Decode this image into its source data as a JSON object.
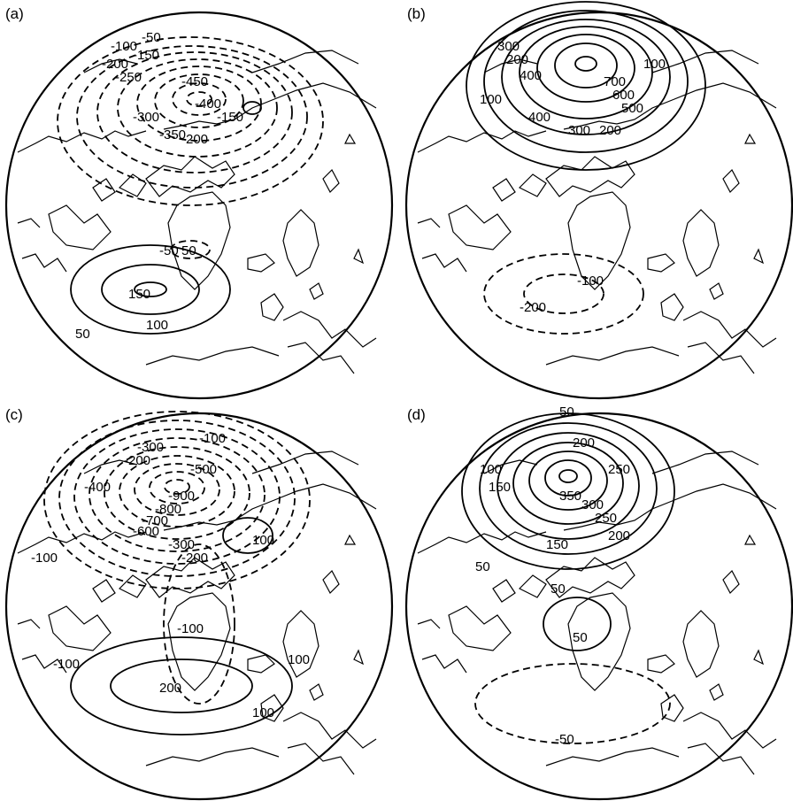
{
  "panels": [
    {
      "label": "(a)",
      "contours": [
        "-100",
        "-50",
        "-200",
        "-150",
        "-250",
        "-450",
        "-400",
        "-300",
        "-350",
        "-200",
        "-150",
        "-50",
        "50",
        "150",
        "100",
        "50"
      ]
    },
    {
      "label": "(b)",
      "contours": [
        "100",
        "300",
        "200",
        "400",
        "700",
        "600",
        "500",
        "400",
        "300",
        "200",
        "100",
        "-100",
        "-200"
      ]
    },
    {
      "label": "(c)",
      "contours": [
        "-100",
        "-300",
        "-200",
        "-500",
        "-400",
        "-900",
        "-800",
        "-700",
        "-600",
        "-300",
        "-200",
        "-100",
        "-100",
        "-100",
        "100",
        "200",
        "100",
        "100"
      ]
    },
    {
      "label": "(d)",
      "contours": [
        "50",
        "200",
        "100",
        "150",
        "250",
        "350",
        "300",
        "250",
        "200",
        "150",
        "50",
        "50",
        "50",
        "-50"
      ]
    }
  ]
}
